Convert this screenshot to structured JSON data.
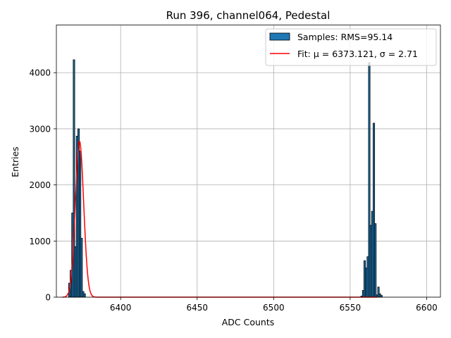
{
  "chart_data": {
    "type": "bar",
    "title": "Run 396, channel064, Pedestal",
    "xlabel": "ADC Counts",
    "ylabel": "Entries",
    "xlim": [
      6358,
      6609
    ],
    "ylim": [
      0,
      4850
    ],
    "xticks": [
      6400,
      6450,
      6500,
      6550,
      6600
    ],
    "yticks": [
      0,
      1000,
      2000,
      3000,
      4000
    ],
    "grid": true,
    "legend_position": "top-right",
    "bar_color": "#1f77b4",
    "bar_edge_color": "#000000",
    "fit_color": "#ff0000",
    "legend": {
      "samples_label": "Samples: RMS=95.14",
      "fit_label": "Fit: μ = 6373.121, σ = 2.71"
    },
    "histogram": [
      {
        "x": 6366,
        "y": 250
      },
      {
        "x": 6367,
        "y": 480
      },
      {
        "x": 6368,
        "y": 1500
      },
      {
        "x": 6369,
        "y": 4230
      },
      {
        "x": 6370,
        "y": 900
      },
      {
        "x": 6371,
        "y": 2870
      },
      {
        "x": 6372,
        "y": 3000
      },
      {
        "x": 6373,
        "y": 2600
      },
      {
        "x": 6374,
        "y": 1050
      },
      {
        "x": 6375,
        "y": 100
      },
      {
        "x": 6376,
        "y": 60
      },
      {
        "x": 6557,
        "y": 20
      },
      {
        "x": 6558,
        "y": 120
      },
      {
        "x": 6559,
        "y": 650
      },
      {
        "x": 6560,
        "y": 520
      },
      {
        "x": 6561,
        "y": 720
      },
      {
        "x": 6562,
        "y": 4180
      },
      {
        "x": 6563,
        "y": 1280
      },
      {
        "x": 6564,
        "y": 1530
      },
      {
        "x": 6565,
        "y": 3100
      },
      {
        "x": 6566,
        "y": 1310
      },
      {
        "x": 6567,
        "y": 40
      },
      {
        "x": 6568,
        "y": 180
      },
      {
        "x": 6569,
        "y": 60
      },
      {
        "x": 6570,
        "y": 30
      }
    ],
    "fit": {
      "mu": 6373.121,
      "sigma": 2.71,
      "amplitude": 2780,
      "range": [
        6362,
        6568
      ]
    }
  }
}
